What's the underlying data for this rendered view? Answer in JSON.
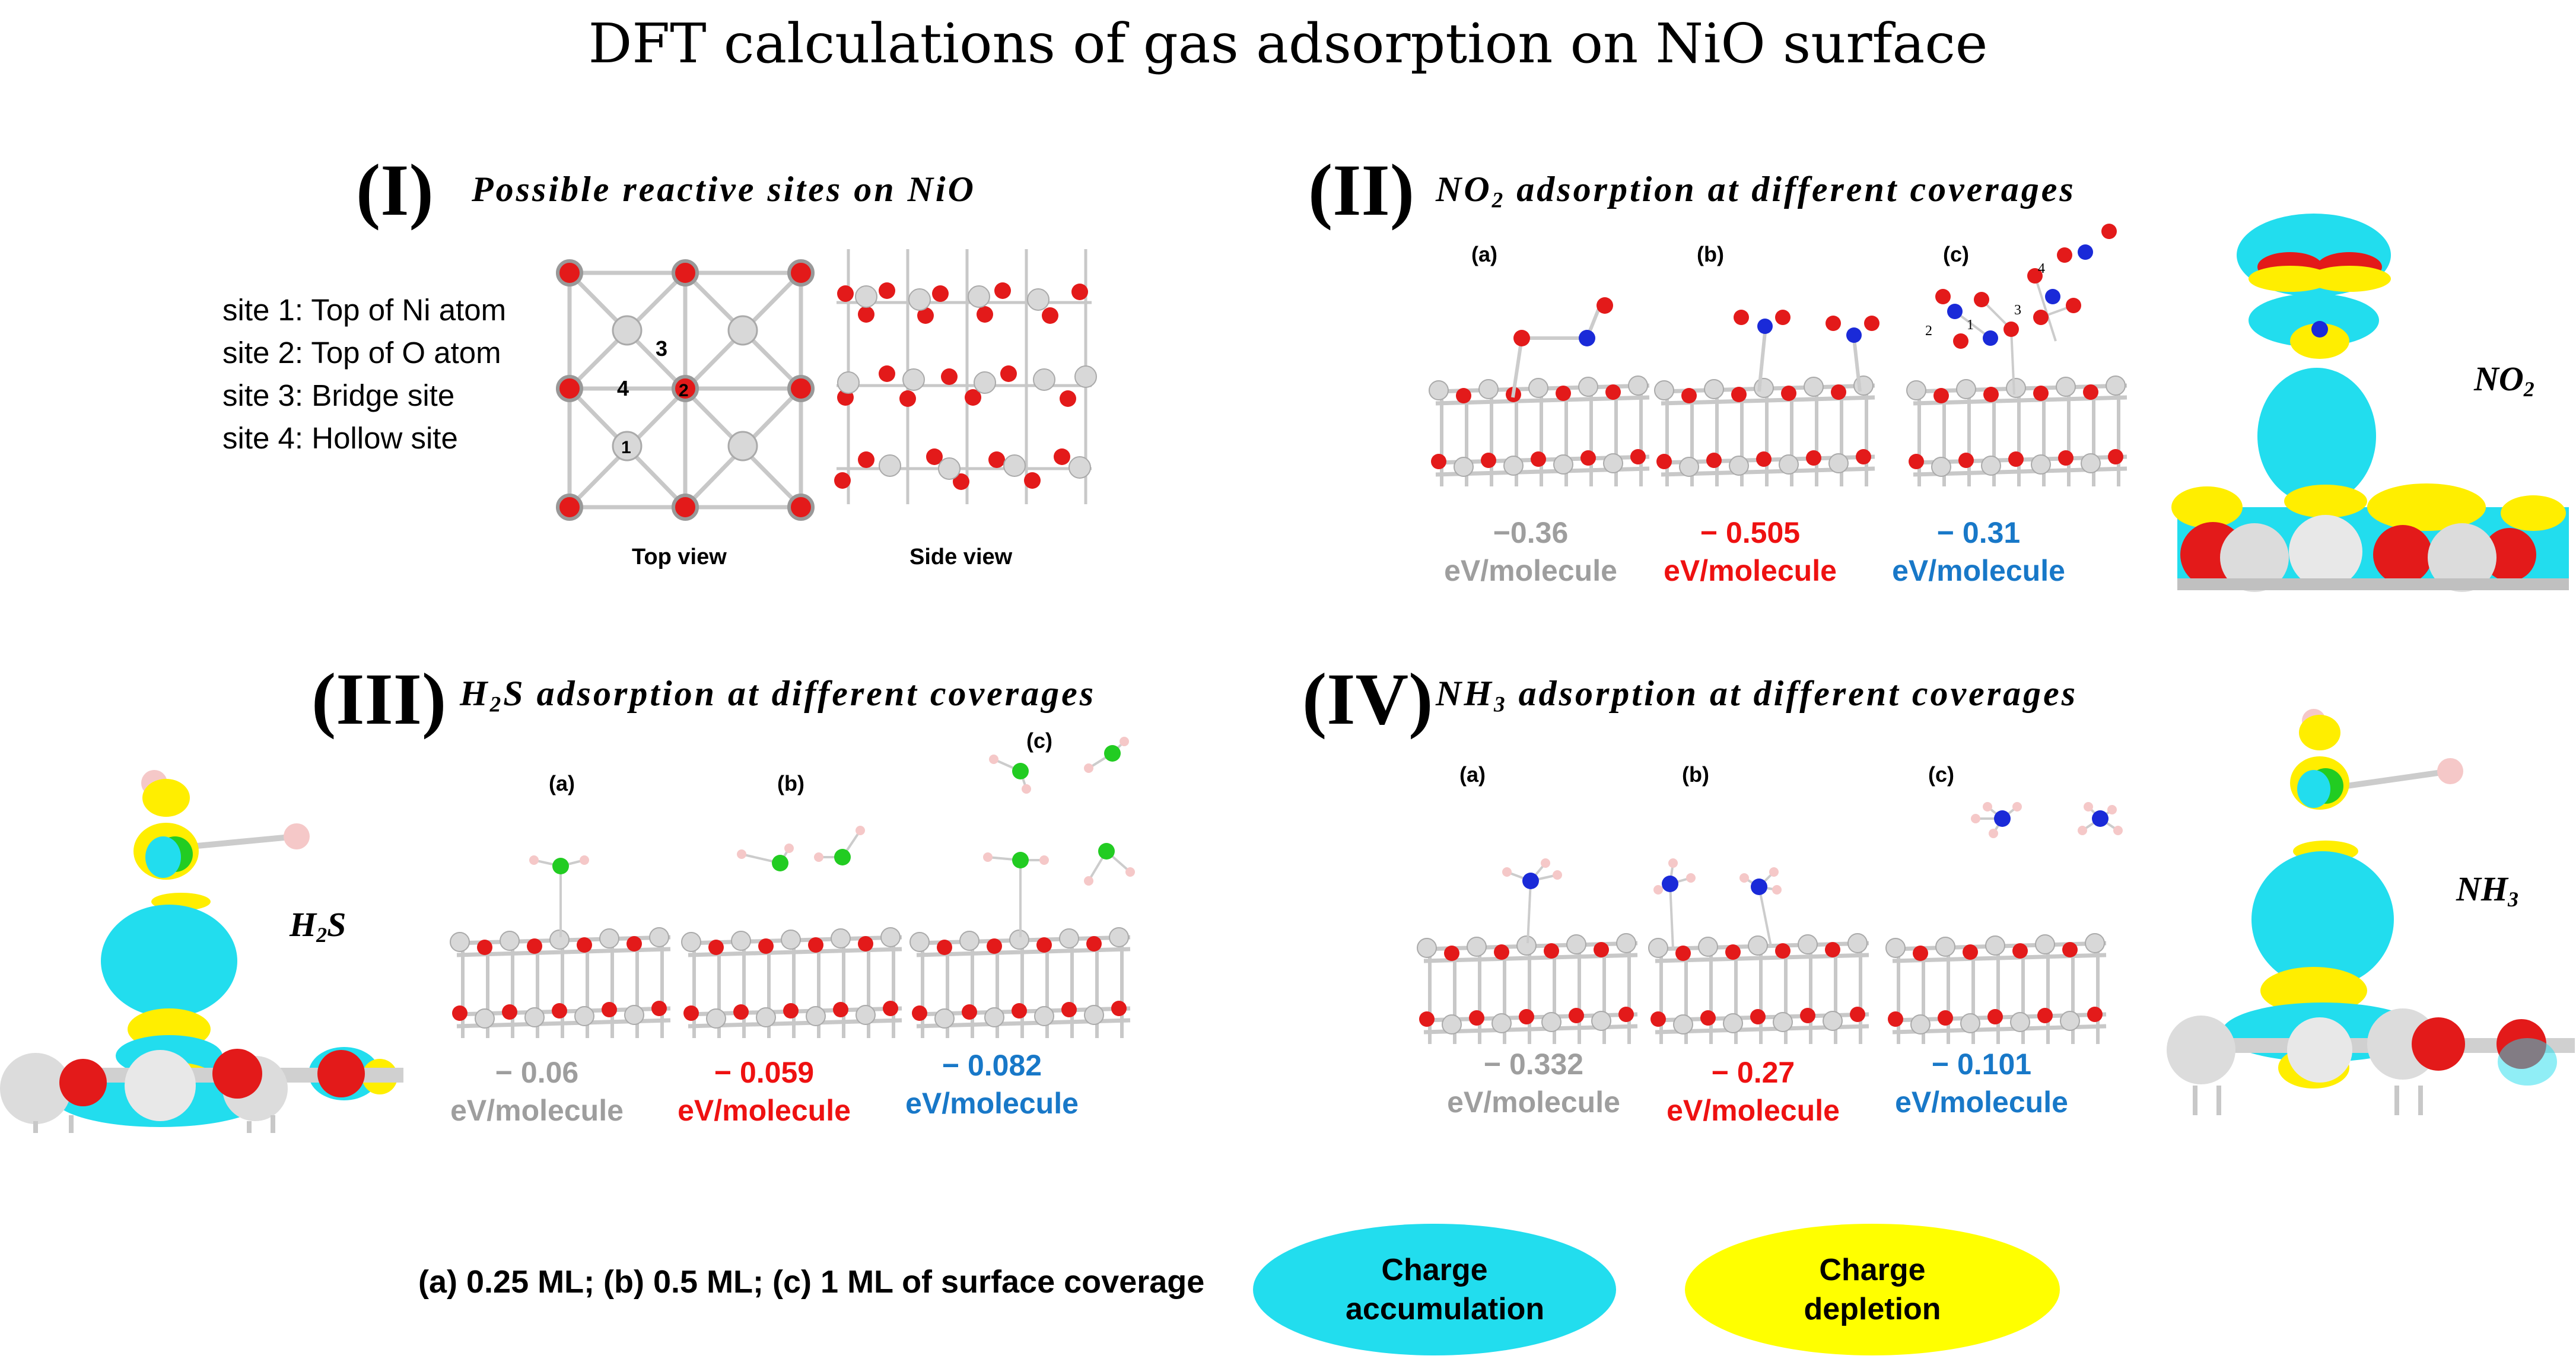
{
  "title": "DFT calculations of gas adsorption on NiO surface",
  "colors": {
    "ni": "#c8c8c8",
    "o": "#e31a1a",
    "n": "#1a2ad8",
    "s": "#22cc22",
    "h": "#f5c8c8",
    "accumulation": "#22ddee",
    "depletion": "#ffff00",
    "grey_text": "#9e9e9e",
    "red_text": "#ee1111",
    "blue_text": "#1878c8"
  },
  "sections": {
    "s1": {
      "numeral": "(I)",
      "title": "Possible reactive sites on NiO",
      "sites": [
        "site 1: Top of Ni atom",
        "site 2: Top of O atom",
        "site 3: Bridge site",
        "site 4: Hollow site"
      ],
      "site_numbers": [
        "1",
        "2",
        "3",
        "4"
      ],
      "views": [
        "Top view",
        "Side view"
      ]
    },
    "s2": {
      "numeral": "(II)",
      "title_pre": "NO",
      "title_sub": "2",
      "title_post": " adsorption at different coverages",
      "panels": [
        "(a)",
        "(b)",
        "(c)"
      ],
      "energies": [
        "−0.36",
        "− 0.505",
        "− 0.31"
      ],
      "unit": "eV/molecule",
      "gas_pre": "NO",
      "gas_sub": "2",
      "numbers_c": [
        "1",
        "2",
        "3",
        "4"
      ]
    },
    "s3": {
      "numeral": "(III)",
      "title_pre": "H",
      "title_sub": "2",
      "title_post": "S adsorption at different coverages",
      "panels": [
        "(a)",
        "(b)",
        "(c)"
      ],
      "energies": [
        "− 0.06",
        "− 0.059",
        "− 0.082"
      ],
      "unit": "eV/molecule",
      "gas_pre": "H",
      "gas_sub": "2",
      "gas_post": "S"
    },
    "s4": {
      "numeral": "(IV)",
      "title_pre": "NH",
      "title_sub": "3",
      "title_post": " adsorption at different coverages",
      "panels": [
        "(a)",
        "(b)",
        "(c)"
      ],
      "energies": [
        "− 0.332",
        "− 0.27",
        "− 0.101"
      ],
      "unit": "eV/molecule",
      "gas_pre": "NH",
      "gas_sub": "3"
    }
  },
  "legend": {
    "coverage": "(a) 0.25 ML; (b) 0.5 ML; (c) 1 ML of surface coverage",
    "accumulation": "Charge accumulation",
    "depletion": "Charge depletion"
  }
}
